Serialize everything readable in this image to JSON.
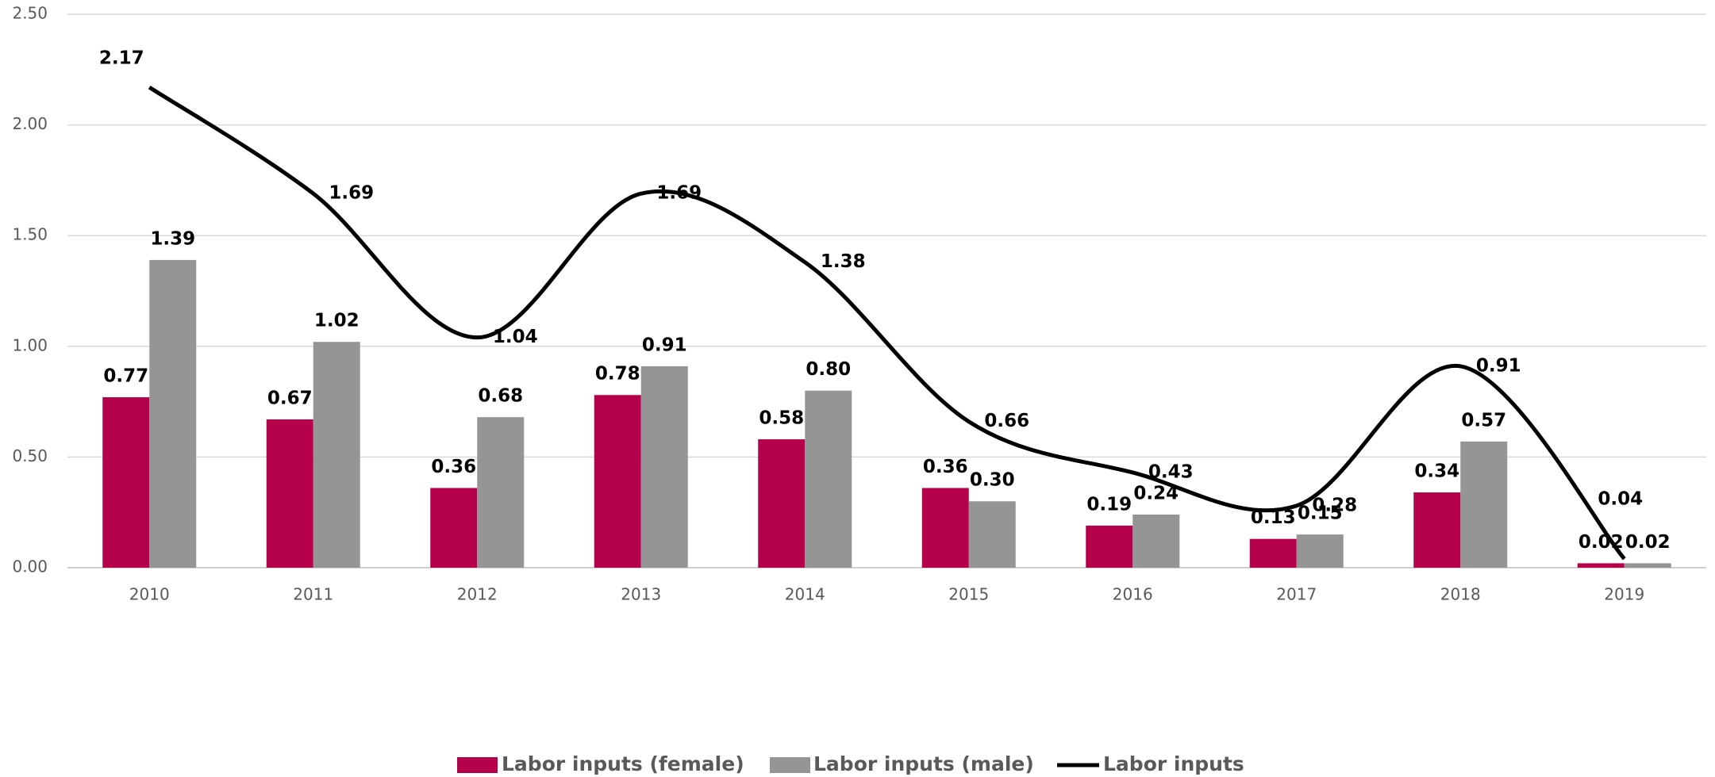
{
  "chart_data": {
    "type": "bar-line",
    "categories": [
      "2010",
      "2011",
      "2012",
      "2013",
      "2014",
      "2015",
      "2016",
      "2017",
      "2018",
      "2019"
    ],
    "series": [
      {
        "name": "Labor inputs (female)",
        "type": "bar",
        "color": "#b5004b",
        "values": [
          0.77,
          0.67,
          0.36,
          0.78,
          0.58,
          0.36,
          0.19,
          0.13,
          0.34,
          0.02
        ],
        "value_labels": [
          "0.77",
          "0.67",
          "0.36",
          "0.78",
          "0.58",
          "0.36",
          "0.19",
          "0.13",
          "0.34",
          "0.02"
        ]
      },
      {
        "name": "Labor inputs (male)",
        "type": "bar",
        "color": "#959595",
        "values": [
          1.39,
          1.02,
          0.68,
          0.91,
          0.8,
          0.3,
          0.24,
          0.15,
          0.57,
          0.02
        ],
        "value_labels": [
          "1.39",
          "1.02",
          "0.68",
          "0.91",
          "0.80",
          "0.30",
          "0.24",
          "0.15",
          "0.57",
          "0.02"
        ]
      },
      {
        "name": "Labor inputs",
        "type": "line",
        "color": "#000000",
        "values": [
          2.17,
          1.69,
          1.04,
          1.69,
          1.38,
          0.66,
          0.43,
          0.28,
          0.91,
          0.04
        ],
        "value_labels": [
          "2.17",
          "1.69",
          "1.04",
          "1.69",
          "1.38",
          "0.66",
          "0.43",
          "0.28",
          "0.91",
          "0.04"
        ]
      }
    ],
    "ylim": [
      0,
      2.5
    ],
    "yticks": [
      {
        "value": 0,
        "label": "0.00"
      },
      {
        "value": 0.5,
        "label": "0.50"
      },
      {
        "value": 1,
        "label": "1.00"
      },
      {
        "value": 1.5,
        "label": "1.50"
      },
      {
        "value": 2,
        "label": "2.00"
      },
      {
        "value": 2.5,
        "label": "2.50"
      }
    ],
    "grid": true,
    "legend": "bottom",
    "smooth": true
  }
}
